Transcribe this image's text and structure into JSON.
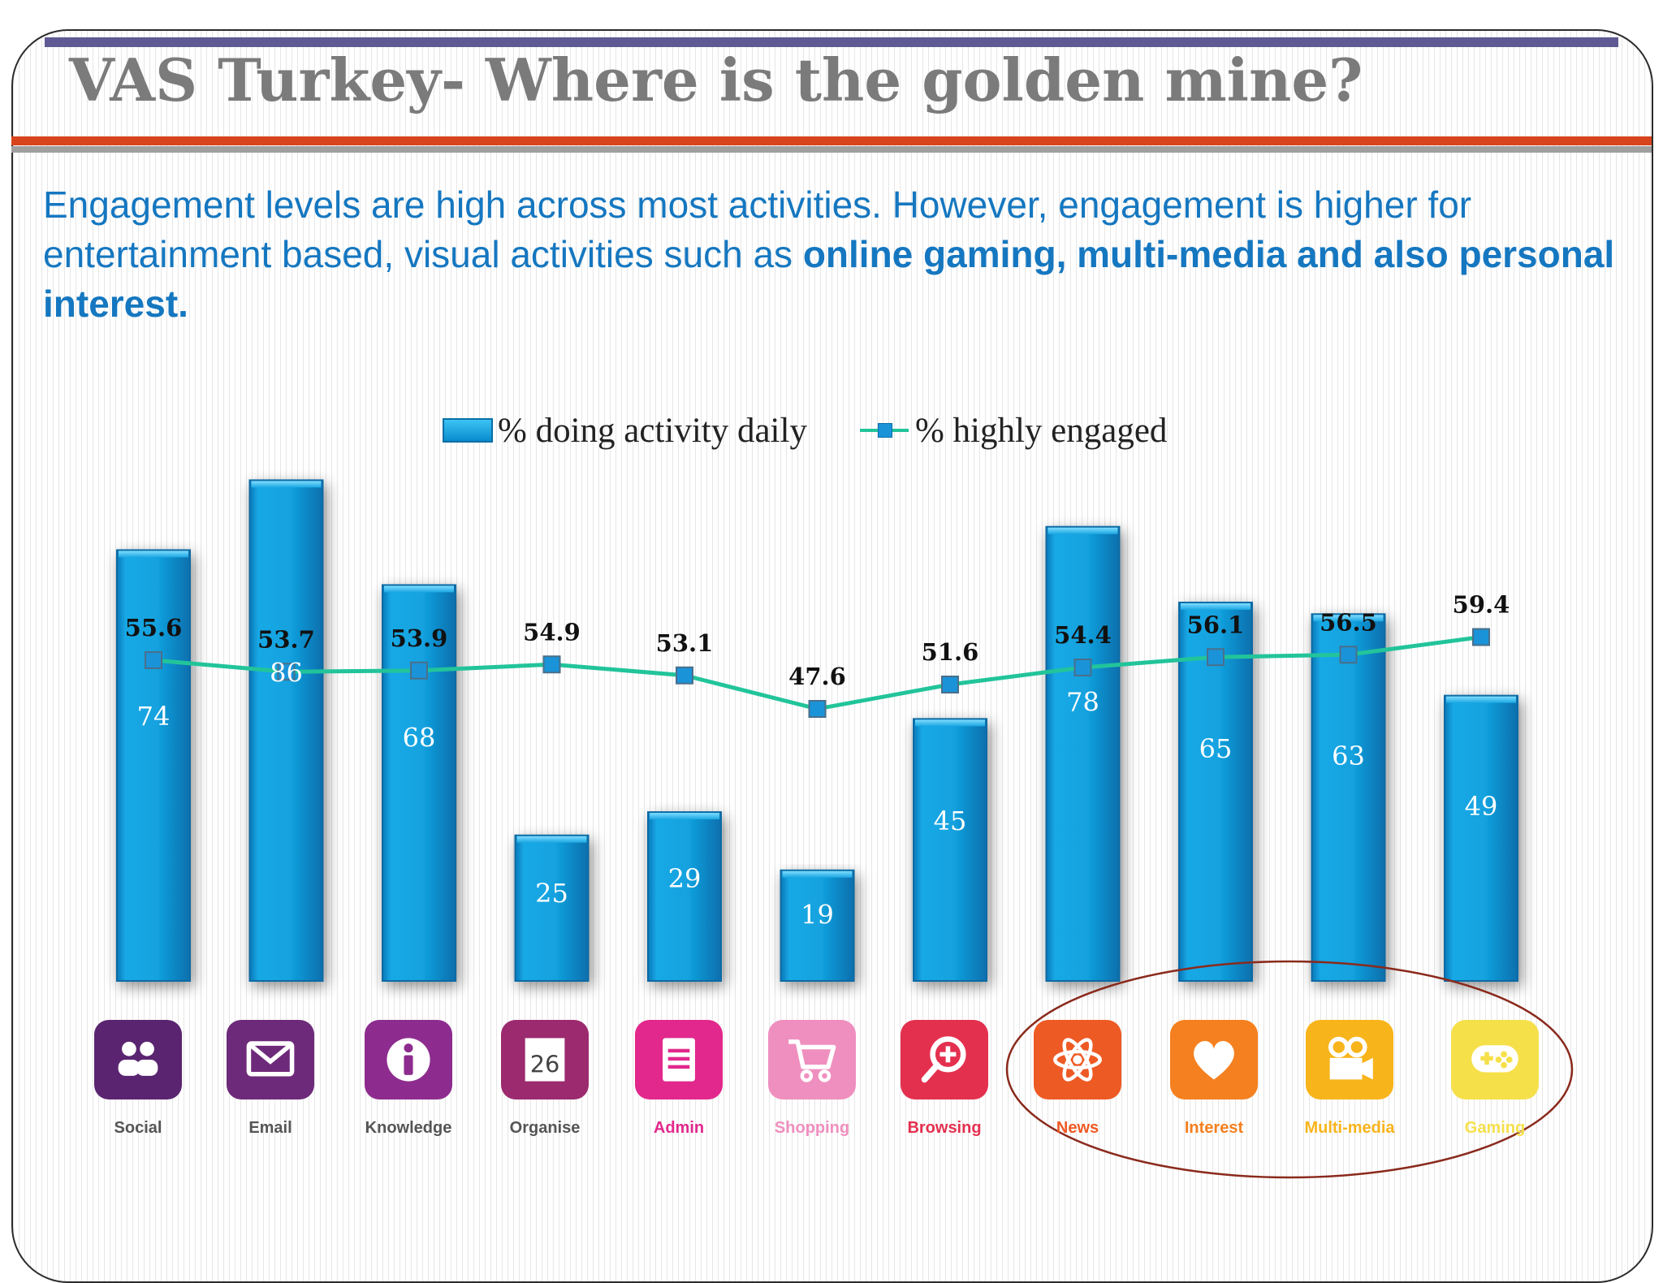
{
  "slide": {
    "title": "VAS Turkey- Where is the golden mine?",
    "subtitle_plain": "Engagement levels are high across most activities. However, engagement is higher for entertainment based, visual activities such as ",
    "subtitle_bold_1": "online gaming",
    "subtitle_mid": ", ",
    "subtitle_bold_2": "multi-media and also personal interest."
  },
  "chart_data": {
    "type": "bar",
    "categories": [
      "Social",
      "Email",
      "Knowledge",
      "Organise",
      "Admin",
      "Shopping",
      "Browsing",
      "News",
      "Interest",
      "Multi-media",
      "Gaming"
    ],
    "series": [
      {
        "name": "% doing activity daily",
        "kind": "bar",
        "values": [
          74,
          86,
          68,
          25,
          29,
          19,
          45,
          78,
          65,
          63,
          49
        ],
        "color": "#14a5e0"
      },
      {
        "name": "% highly engaged",
        "kind": "line",
        "values": [
          55.6,
          53.7,
          53.9,
          54.9,
          53.1,
          47.6,
          51.6,
          54.4,
          56.1,
          56.5,
          59.4
        ],
        "color": "#22c49a"
      }
    ],
    "highlighted_categories": [
      "News",
      "Interest",
      "Multi-media",
      "Gaming"
    ],
    "grid": false,
    "legend_position": "top-center"
  },
  "icons": [
    {
      "label": "Social",
      "icon": "people-icon",
      "color": "#5a2470",
      "label_color": "#555555"
    },
    {
      "label": "Email",
      "icon": "envelope-icon",
      "color": "#6e2a7a",
      "label_color": "#555555"
    },
    {
      "label": "Knowledge",
      "icon": "info-icon",
      "color": "#8d2c8e",
      "label_color": "#555555"
    },
    {
      "label": "Organise",
      "icon": "calendar-icon",
      "color": "#9b2a6e",
      "label_color": "#555555",
      "glyph_text": "26"
    },
    {
      "label": "Admin",
      "icon": "document-icon",
      "color": "#e2288c",
      "label_color": "#e2288c"
    },
    {
      "label": "Shopping",
      "icon": "cart-icon",
      "color": "#ef8fbf",
      "label_color": "#ef8fbf"
    },
    {
      "label": "Browsing",
      "icon": "magnifier-plus-icon",
      "color": "#e4304f",
      "label_color": "#e4304f"
    },
    {
      "label": "News",
      "icon": "atom-icon",
      "color": "#ee5a24",
      "label_color": "#ee5a24"
    },
    {
      "label": "Interest",
      "icon": "heart-icon",
      "color": "#f5801f",
      "label_color": "#f5801f"
    },
    {
      "label": "Multi-media",
      "icon": "movie-camera-icon",
      "color": "#f8b41b",
      "label_color": "#f8b41b"
    },
    {
      "label": "Gaming",
      "icon": "gamepad-icon",
      "color": "#f6e04a",
      "label_color": "#f6e04a"
    }
  ],
  "highlight_ellipse_color": "#8a2a1c"
}
